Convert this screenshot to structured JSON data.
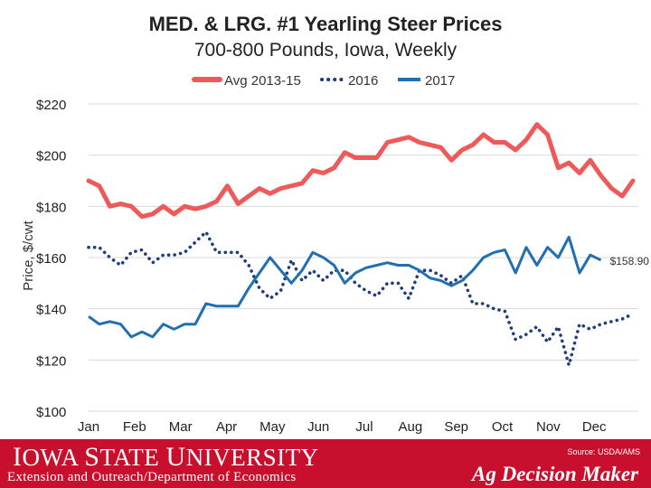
{
  "chart_data": {
    "type": "line",
    "title": "MED. & LRG. #1 Yearling Steer Prices",
    "subtitle": "700-800 Pounds, Iowa, Weekly",
    "xlabel": "",
    "ylabel": "Price, $/cwt",
    "ylim": [
      100,
      220
    ],
    "yticks": [
      100,
      120,
      140,
      160,
      180,
      200,
      220
    ],
    "ytick_labels": [
      "$100",
      "$120",
      "$140",
      "$160",
      "$180",
      "$200",
      "$220"
    ],
    "months": [
      "Jan",
      "Feb",
      "Mar",
      "Apr",
      "May",
      "Jun",
      "Jul",
      "Aug",
      "Sep",
      "Oct",
      "Nov",
      "Dec"
    ],
    "x_unit": "week of year (1-52)",
    "grid": true,
    "legend_position": "top-center",
    "series": [
      {
        "name": "Avg 2013-15",
        "color": "#ee5a5a",
        "style": "solid",
        "values": [
          190,
          188,
          180,
          181,
          180,
          176,
          177,
          180,
          177,
          180,
          179,
          180,
          182,
          188,
          181,
          184,
          187,
          185,
          187,
          188,
          189,
          194,
          193,
          195,
          201,
          199,
          199,
          199,
          205,
          206,
          207,
          205,
          204,
          203,
          198,
          202,
          204,
          208,
          205,
          205,
          202,
          206,
          212,
          208,
          195,
          197,
          193,
          198,
          192,
          187,
          184,
          190
        ]
      },
      {
        "name": "2016",
        "color": "#1f3d7a",
        "style": "dotted",
        "values": [
          164,
          164,
          160,
          157,
          162,
          163,
          158,
          161,
          161,
          162,
          166,
          170,
          162,
          162,
          162,
          157,
          148,
          144,
          147,
          159,
          151,
          155,
          151,
          155,
          155,
          150,
          147,
          145,
          150,
          150,
          144,
          155,
          155,
          153,
          150,
          153,
          142,
          142,
          140,
          139,
          128,
          130,
          133,
          127,
          133,
          118,
          134,
          132,
          134,
          135,
          136,
          138
        ]
      },
      {
        "name": "2017",
        "color": "#1f6fb2",
        "style": "solid",
        "values": [
          137,
          134,
          135,
          134,
          129,
          131,
          129,
          134,
          132,
          134,
          134,
          142,
          141,
          141,
          141,
          148,
          154,
          160,
          155,
          150,
          155,
          162,
          160,
          157,
          150,
          154,
          156,
          157,
          158,
          157,
          157,
          155,
          152,
          151,
          149,
          151,
          155,
          160,
          162,
          163,
          154,
          164,
          157,
          164,
          160,
          168,
          154,
          161,
          159
        ]
      }
    ],
    "annotations": [
      {
        "text": "$158.90",
        "series": "2017",
        "at_week": 49
      }
    ],
    "source": "Source: USDA/AMS"
  },
  "footer": {
    "university_big_i": "I",
    "university_rest_1": "OWA ",
    "university_big_s": "S",
    "university_rest_2": "TATE ",
    "university_big_u": "U",
    "university_rest_3": "NIVERSITY",
    "extension": "Extension and Outreach/Department of Economics",
    "brand": "Ag Decision Maker",
    "brand_color": "#c8102e"
  }
}
